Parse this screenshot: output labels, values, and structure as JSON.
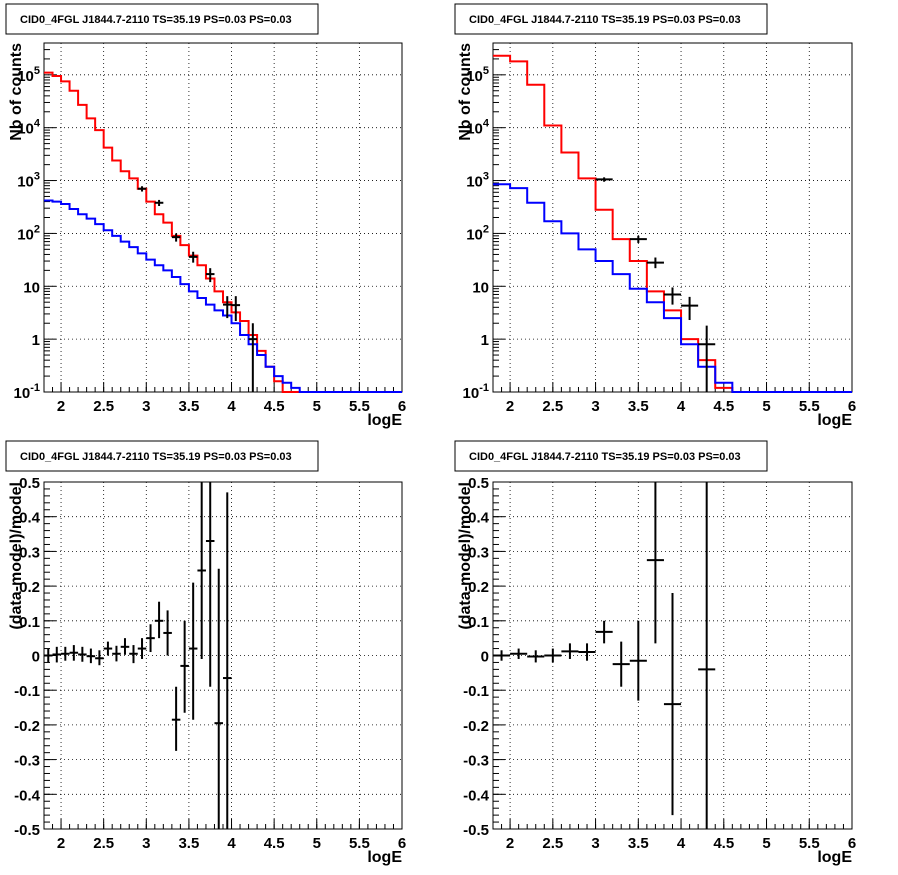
{
  "chart_data": [
    {
      "type": "line",
      "title": "CID0_4FGL J1844.7-2110 TS=35.19 PS=0.03 PS=0.03",
      "xlabel": "logE",
      "ylabel": "Nb of counts",
      "log_y": true,
      "xlim": [
        1.8,
        6.0
      ],
      "ylim": [
        0.1,
        400000
      ],
      "grid": true,
      "x_ticks": [
        "2",
        "2.5",
        "3",
        "3.5",
        "4",
        "4.5",
        "5",
        "5.5",
        "6"
      ],
      "y_ticks": [
        "10^-1",
        "1",
        "10",
        "10^2",
        "10^3",
        "10^4",
        "10^5"
      ],
      "bin_edges": [
        1.8,
        1.9,
        2.0,
        2.1,
        2.2,
        2.3,
        2.4,
        2.5,
        2.6,
        2.7,
        2.8,
        2.9,
        3.0,
        3.1,
        3.2,
        3.3,
        3.4,
        3.5,
        3.6,
        3.7,
        3.8,
        3.9,
        4.0,
        4.1,
        4.2,
        4.3,
        4.4,
        4.5,
        4.6,
        4.7,
        4.8,
        4.9,
        5.0,
        5.1,
        5.2,
        5.3,
        5.4,
        5.5,
        5.6,
        5.7,
        5.8,
        5.9,
        6.0
      ],
      "series": [
        {
          "color": "#ff0000",
          "style": "step",
          "values": [
            110000,
            95000,
            75000,
            50000,
            27000,
            15000,
            9000,
            4200,
            2400,
            1500,
            1100,
            700,
            400,
            230,
            160,
            90,
            60,
            38,
            25,
            14,
            8,
            5,
            3.2,
            2.2,
            1.2,
            0.6,
            0.3,
            0.16,
            0.1,
            0.1,
            0.1,
            0.1,
            0.1,
            0.1,
            0.1,
            0.1,
            0.1,
            0.1,
            0.1,
            0.1,
            0.1,
            0.1
          ]
        },
        {
          "color": "#0000ff",
          "style": "step",
          "values": [
            420,
            400,
            360,
            290,
            230,
            190,
            150,
            115,
            90,
            70,
            55,
            42,
            32,
            25,
            20,
            15,
            11,
            8,
            6,
            4.5,
            3.5,
            2.8,
            2.0,
            1.2,
            0.8,
            0.5,
            0.3,
            0.2,
            0.15,
            0.12,
            0.1,
            0.1,
            0.1,
            0.1,
            0.1,
            0.1,
            0.1,
            0.1,
            0.1,
            0.1,
            0.1,
            0.1
          ]
        },
        {
          "name": "data",
          "color": "#000000",
          "style": "points",
          "points": [
            {
              "x": 2.95,
              "y": 700,
              "xerr": 0.05,
              "ylo": 620,
              "yhi": 780
            },
            {
              "x": 3.15,
              "y": 380,
              "xerr": 0.05,
              "ylo": 330,
              "yhi": 430
            },
            {
              "x": 3.35,
              "y": 85,
              "xerr": 0.05,
              "ylo": 70,
              "yhi": 100
            },
            {
              "x": 3.55,
              "y": 36,
              "xerr": 0.05,
              "ylo": 28,
              "yhi": 45
            },
            {
              "x": 3.75,
              "y": 17,
              "xerr": 0.05,
              "ylo": 12,
              "yhi": 22
            },
            {
              "x": 3.95,
              "y": 4.5,
              "xerr": 0.05,
              "ylo": 2.5,
              "yhi": 6.5
            },
            {
              "x": 4.05,
              "y": 4.4,
              "xerr": 0.05,
              "ylo": 2.2,
              "yhi": 6.5
            },
            {
              "x": 4.25,
              "y": 1.0,
              "xerr": 0.05,
              "ylo": 0.1,
              "yhi": 2.0
            }
          ]
        }
      ]
    },
    {
      "type": "line",
      "title": "CID0_4FGL J1844.7-2110 TS=35.19 PS=0.03 PS=0.03",
      "xlabel": "logE",
      "ylabel": "Nb of counts",
      "log_y": true,
      "xlim": [
        1.8,
        6.0
      ],
      "ylim": [
        0.1,
        400000
      ],
      "grid": true,
      "x_ticks": [
        "2",
        "2.5",
        "3",
        "3.5",
        "4",
        "4.5",
        "5",
        "5.5",
        "6"
      ],
      "y_ticks": [
        "10^-1",
        "1",
        "10",
        "10^2",
        "10^3",
        "10^4",
        "10^5"
      ],
      "bin_edges": [
        1.8,
        2.0,
        2.2,
        2.4,
        2.6,
        2.8,
        3.0,
        3.2,
        3.4,
        3.6,
        3.8,
        4.0,
        4.2,
        4.4,
        4.6,
        4.8,
        5.0,
        5.2,
        5.4,
        5.6,
        5.8,
        6.0
      ],
      "series": [
        {
          "color": "#ff0000",
          "style": "step",
          "values": [
            230000,
            180000,
            65000,
            11000,
            3400,
            1100,
            280,
            78,
            30,
            8,
            3.5,
            1.0,
            0.4,
            0.12,
            0.1,
            0.1,
            0.1,
            0.1,
            0.1,
            0.1,
            0.1
          ]
        },
        {
          "color": "#0000ff",
          "style": "step",
          "values": [
            850,
            720,
            380,
            170,
            100,
            50,
            30,
            17,
            9,
            5,
            2.5,
            0.8,
            0.3,
            0.15,
            0.1,
            0.1,
            0.1,
            0.1,
            0.1,
            0.1,
            0.1
          ]
        },
        {
          "name": "data",
          "color": "#000000",
          "style": "points",
          "points": [
            {
              "x": 3.1,
              "y": 1050,
              "xerr": 0.1,
              "ylo": 950,
              "yhi": 1150
            },
            {
              "x": 3.5,
              "y": 78,
              "xerr": 0.1,
              "ylo": 66,
              "yhi": 90
            },
            {
              "x": 3.7,
              "y": 28,
              "xerr": 0.1,
              "ylo": 22,
              "yhi": 35
            },
            {
              "x": 3.9,
              "y": 7,
              "xerr": 0.1,
              "ylo": 4.5,
              "yhi": 9.5
            },
            {
              "x": 4.1,
              "y": 4.3,
              "xerr": 0.1,
              "ylo": 2.3,
              "yhi": 6.3
            },
            {
              "x": 4.3,
              "y": 0.8,
              "xerr": 0.1,
              "ylo": 0.1,
              "yhi": 1.8
            }
          ]
        }
      ]
    },
    {
      "type": "scatter",
      "title": "CID0_4FGL J1844.7-2110 TS=35.19 PS=0.03 PS=0.03",
      "xlabel": "logE",
      "ylabel": "(data-model)/model",
      "xlim": [
        1.8,
        6.0
      ],
      "ylim": [
        -0.5,
        0.5
      ],
      "grid": true,
      "x_ticks": [
        "2",
        "2.5",
        "3",
        "3.5",
        "4",
        "4.5",
        "5",
        "5.5",
        "6"
      ],
      "y_ticks": [
        "-0.5",
        "-0.4",
        "-0.3",
        "-0.2",
        "-0.1",
        "0",
        "0.1",
        "0.2",
        "0.3",
        "0.4",
        "0.5"
      ],
      "series": [
        {
          "name": "residuals",
          "color": "#000000",
          "points": [
            {
              "x": 1.85,
              "y": 0.0,
              "xerr": 0.05,
              "ylo": -0.02,
              "yhi": 0.02
            },
            {
              "x": 1.95,
              "y": 0.003,
              "xerr": 0.05,
              "ylo": -0.02,
              "yhi": 0.025
            },
            {
              "x": 2.05,
              "y": 0.005,
              "xerr": 0.05,
              "ylo": -0.015,
              "yhi": 0.025
            },
            {
              "x": 2.15,
              "y": 0.008,
              "xerr": 0.05,
              "ylo": -0.015,
              "yhi": 0.03
            },
            {
              "x": 2.25,
              "y": 0.003,
              "xerr": 0.05,
              "ylo": -0.018,
              "yhi": 0.025
            },
            {
              "x": 2.35,
              "y": -0.002,
              "xerr": 0.05,
              "ylo": -0.022,
              "yhi": 0.02
            },
            {
              "x": 2.45,
              "y": -0.008,
              "xerr": 0.05,
              "ylo": -0.028,
              "yhi": 0.015
            },
            {
              "x": 2.55,
              "y": 0.02,
              "xerr": 0.05,
              "ylo": 0.0,
              "yhi": 0.04
            },
            {
              "x": 2.65,
              "y": 0.005,
              "xerr": 0.05,
              "ylo": -0.017,
              "yhi": 0.028
            },
            {
              "x": 2.75,
              "y": 0.025,
              "xerr": 0.05,
              "ylo": 0.002,
              "yhi": 0.05
            },
            {
              "x": 2.85,
              "y": 0.005,
              "xerr": 0.05,
              "ylo": -0.022,
              "yhi": 0.03
            },
            {
              "x": 2.95,
              "y": 0.02,
              "xerr": 0.05,
              "ylo": -0.01,
              "yhi": 0.05
            },
            {
              "x": 3.05,
              "y": 0.05,
              "xerr": 0.05,
              "ylo": 0.01,
              "yhi": 0.09
            },
            {
              "x": 3.15,
              "y": 0.1,
              "xerr": 0.05,
              "ylo": 0.05,
              "yhi": 0.155
            },
            {
              "x": 3.25,
              "y": 0.065,
              "xerr": 0.05,
              "ylo": 0.0,
              "yhi": 0.13
            },
            {
              "x": 3.35,
              "y": -0.185,
              "xerr": 0.05,
              "ylo": -0.275,
              "yhi": -0.09
            },
            {
              "x": 3.45,
              "y": -0.03,
              "xerr": 0.05,
              "ylo": -0.165,
              "yhi": 0.1
            },
            {
              "x": 3.55,
              "y": 0.02,
              "xerr": 0.05,
              "ylo": -0.185,
              "yhi": 0.21
            },
            {
              "x": 3.65,
              "y": 0.245,
              "xerr": 0.05,
              "ylo": -0.01,
              "yhi": 0.5
            },
            {
              "x": 3.75,
              "y": 0.33,
              "xerr": 0.05,
              "ylo": -0.09,
              "yhi": 0.5
            },
            {
              "x": 3.85,
              "y": -0.195,
              "xerr": 0.05,
              "ylo": -0.5,
              "yhi": 0.25
            },
            {
              "x": 3.95,
              "y": -0.065,
              "xerr": 0.05,
              "ylo": -0.5,
              "yhi": 0.47
            }
          ]
        }
      ]
    },
    {
      "type": "scatter",
      "title": "CID0_4FGL J1844.7-2110 TS=35.19 PS=0.03 PS=0.03",
      "xlabel": "logE",
      "ylabel": "(data-model)/model",
      "xlim": [
        1.8,
        6.0
      ],
      "ylim": [
        -0.5,
        0.5
      ],
      "grid": true,
      "x_ticks": [
        "2",
        "2.5",
        "3",
        "3.5",
        "4",
        "4.5",
        "5",
        "5.5",
        "6"
      ],
      "y_ticks": [
        "-0.5",
        "-0.4",
        "-0.3",
        "-0.2",
        "-0.1",
        "0",
        "0.1",
        "0.2",
        "0.3",
        "0.4",
        "0.5"
      ],
      "series": [
        {
          "name": "residuals",
          "color": "#000000",
          "points": [
            {
              "x": 1.9,
              "y": 0.0,
              "xerr": 0.1,
              "ylo": -0.015,
              "yhi": 0.015
            },
            {
              "x": 2.1,
              "y": 0.005,
              "xerr": 0.1,
              "ylo": -0.01,
              "yhi": 0.02
            },
            {
              "x": 2.3,
              "y": -0.003,
              "xerr": 0.1,
              "ylo": -0.02,
              "yhi": 0.015
            },
            {
              "x": 2.5,
              "y": 0.0,
              "xerr": 0.1,
              "ylo": -0.02,
              "yhi": 0.02
            },
            {
              "x": 2.7,
              "y": 0.012,
              "xerr": 0.1,
              "ylo": -0.01,
              "yhi": 0.035
            },
            {
              "x": 2.9,
              "y": 0.01,
              "xerr": 0.1,
              "ylo": -0.015,
              "yhi": 0.035
            },
            {
              "x": 3.1,
              "y": 0.068,
              "xerr": 0.1,
              "ylo": 0.035,
              "yhi": 0.1
            },
            {
              "x": 3.3,
              "y": -0.025,
              "xerr": 0.1,
              "ylo": -0.09,
              "yhi": 0.04
            },
            {
              "x": 3.5,
              "y": -0.015,
              "xerr": 0.1,
              "ylo": -0.13,
              "yhi": 0.1
            },
            {
              "x": 3.7,
              "y": 0.275,
              "xerr": 0.1,
              "ylo": 0.035,
              "yhi": 0.5
            },
            {
              "x": 3.9,
              "y": -0.14,
              "xerr": 0.1,
              "ylo": -0.46,
              "yhi": 0.18
            },
            {
              "x": 4.3,
              "y": -0.04,
              "xerr": 0.1,
              "ylo": -0.5,
              "yhi": 0.5
            }
          ]
        }
      ]
    }
  ]
}
